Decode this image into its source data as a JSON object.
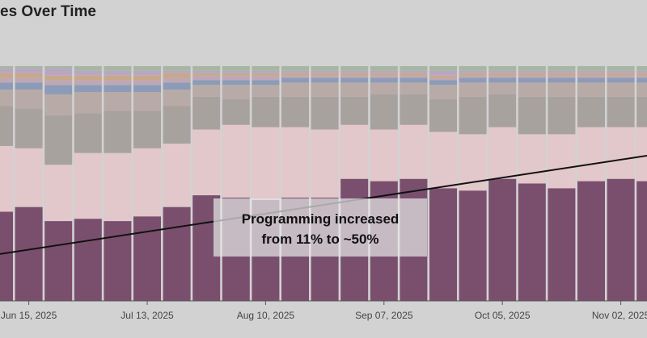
{
  "chart_data": {
    "type": "bar",
    "stacked": true,
    "normalized": true,
    "title": "es Over Time",
    "xlabel": "",
    "ylabel": "",
    "ylim": [
      0,
      1
    ],
    "grid": false,
    "legend": "none",
    "x_tick_labels": [
      "Jun 15, 2025",
      "Jul 13, 2025",
      "Aug 10, 2025",
      "Sep 07, 2025",
      "Oct 05, 2025",
      "Nov 02, 2025"
    ],
    "x_tick_positions": [
      1,
      5,
      9,
      13,
      17,
      21
    ],
    "categories": [
      "0",
      "1",
      "2",
      "3",
      "4",
      "5",
      "6",
      "7",
      "8",
      "9",
      "10",
      "11",
      "12",
      "13",
      "14",
      "15",
      "16",
      "17",
      "18",
      "19",
      "20",
      "21",
      "22"
    ],
    "series": [
      {
        "color": "#7a4f6e",
        "values": [
          0.38,
          0.4,
          0.34,
          0.35,
          0.34,
          0.36,
          0.4,
          0.45,
          0.44,
          0.43,
          0.44,
          0.44,
          0.52,
          0.51,
          0.52,
          0.48,
          0.47,
          0.52,
          0.5,
          0.48,
          0.51,
          0.52,
          0.51
        ]
      },
      {
        "color": "#e2c7cb",
        "values": [
          0.28,
          0.25,
          0.24,
          0.28,
          0.29,
          0.29,
          0.27,
          0.28,
          0.31,
          0.31,
          0.3,
          0.29,
          0.23,
          0.22,
          0.23,
          0.24,
          0.24,
          0.22,
          0.21,
          0.23,
          0.23,
          0.22,
          0.23
        ]
      },
      {
        "color": "#a8a29f",
        "values": [
          0.17,
          0.17,
          0.21,
          0.17,
          0.18,
          0.16,
          0.16,
          0.14,
          0.11,
          0.13,
          0.13,
          0.14,
          0.12,
          0.15,
          0.13,
          0.14,
          0.16,
          0.14,
          0.16,
          0.16,
          0.13,
          0.13,
          0.13
        ]
      },
      {
        "color": "#b7aaa7",
        "values": [
          0.07,
          0.08,
          0.09,
          0.09,
          0.08,
          0.08,
          0.07,
          0.05,
          0.06,
          0.05,
          0.06,
          0.06,
          0.06,
          0.05,
          0.05,
          0.06,
          0.06,
          0.05,
          0.06,
          0.06,
          0.06,
          0.06,
          0.06
        ]
      },
      {
        "color": "#8c9bb8",
        "values": [
          0.03,
          0.03,
          0.04,
          0.03,
          0.03,
          0.03,
          0.03,
          0.02,
          0.02,
          0.02,
          0.02,
          0.02,
          0.02,
          0.02,
          0.02,
          0.02,
          0.02,
          0.02,
          0.02,
          0.02,
          0.02,
          0.02,
          0.02
        ]
      },
      {
        "color": "#bfa7b4",
        "values": [
          0.02,
          0.02,
          0.02,
          0.02,
          0.02,
          0.02,
          0.02,
          0.02,
          0.02,
          0.02,
          0.01,
          0.01,
          0.01,
          0.01,
          0.01,
          0.01,
          0.01,
          0.01,
          0.01,
          0.01,
          0.01,
          0.01,
          0.01
        ]
      },
      {
        "color": "#c7a98a",
        "values": [
          0.02,
          0.02,
          0.02,
          0.02,
          0.02,
          0.02,
          0.02,
          0.01,
          0.01,
          0.01,
          0.01,
          0.01,
          0.01,
          0.01,
          0.01,
          0.01,
          0.01,
          0.01,
          0.01,
          0.01,
          0.01,
          0.01,
          0.01
        ]
      },
      {
        "color": "#b9a7c2",
        "values": [
          0.02,
          0.02,
          0.03,
          0.02,
          0.02,
          0.02,
          0.01,
          0.01,
          0.01,
          0.01,
          0.01,
          0.01,
          0.01,
          0.01,
          0.01,
          0.02,
          0.01,
          0.01,
          0.01,
          0.01,
          0.01,
          0.01,
          0.01
        ]
      },
      {
        "color": "#a6b6a3",
        "values": [
          0.01,
          0.01,
          0.01,
          0.02,
          0.02,
          0.02,
          0.02,
          0.02,
          0.02,
          0.02,
          0.02,
          0.02,
          0.02,
          0.02,
          0.02,
          0.02,
          0.02,
          0.02,
          0.02,
          0.02,
          0.02,
          0.02,
          0.02
        ]
      }
    ],
    "trend_line": {
      "x": [
        -1,
        23
      ],
      "y": [
        0.18,
        0.64
      ]
    },
    "annotation": {
      "lines": [
        "Programming increased",
        "from 11% to ~50%"
      ]
    }
  }
}
